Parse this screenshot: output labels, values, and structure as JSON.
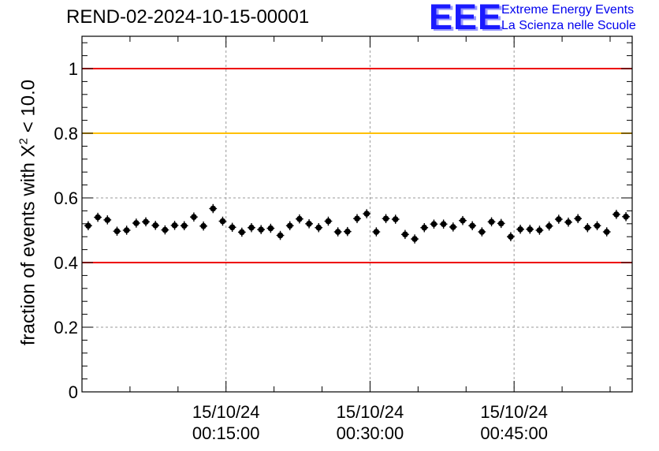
{
  "title": "REND-02-2024-10-15-00001",
  "logo": {
    "mark": "EEE",
    "line1": "Extreme Energy Events",
    "line2": "La Scienza nelle Scuole"
  },
  "chart_data": {
    "type": "scatter",
    "title": "REND-02-2024-10-15-00001",
    "ylabel": {
      "prefix": "fraction of events with ",
      "symbol": "X",
      "sup": "2",
      "suffix": " < 10.0"
    },
    "xlabel": "",
    "ylim": [
      0,
      1.1
    ],
    "xlim": [
      0,
      57.3
    ],
    "x_unit": "minutes after 15/10/24 00:00:00",
    "yticks": [
      {
        "value": 0,
        "label": "0"
      },
      {
        "value": 0.2,
        "label": "0.2"
      },
      {
        "value": 0.4,
        "label": "0.4"
      },
      {
        "value": 0.6,
        "label": "0.6"
      },
      {
        "value": 0.8,
        "label": "0.8"
      },
      {
        "value": 1,
        "label": "1"
      }
    ],
    "xticks": [
      {
        "value": 15,
        "date": "15/10/24",
        "time": "00:15:00"
      },
      {
        "value": 30,
        "date": "15/10/24",
        "time": "00:30:00"
      },
      {
        "value": 45,
        "date": "15/10/24",
        "time": "00:45:00"
      }
    ],
    "grid": true,
    "reference_lines": [
      {
        "y": 1.0,
        "color": "#ee0000"
      },
      {
        "y": 0.8,
        "color": "#ffc000"
      },
      {
        "y": 0.4,
        "color": "#ee0000"
      }
    ],
    "series": [
      {
        "marker_color": "#000000",
        "x_error": 0.4,
        "y_error": 0.014,
        "points": [
          [
            0.65,
            0.514
          ],
          [
            1.65,
            0.54
          ],
          [
            2.65,
            0.532
          ],
          [
            3.65,
            0.497
          ],
          [
            4.65,
            0.5
          ],
          [
            5.65,
            0.522
          ],
          [
            6.65,
            0.526
          ],
          [
            7.65,
            0.515
          ],
          [
            8.65,
            0.501
          ],
          [
            9.65,
            0.515
          ],
          [
            10.65,
            0.514
          ],
          [
            11.65,
            0.541
          ],
          [
            12.65,
            0.513
          ],
          [
            13.65,
            0.567
          ],
          [
            14.65,
            0.528
          ],
          [
            15.65,
            0.509
          ],
          [
            16.65,
            0.494
          ],
          [
            17.65,
            0.508
          ],
          [
            18.65,
            0.502
          ],
          [
            19.65,
            0.506
          ],
          [
            20.65,
            0.484
          ],
          [
            21.65,
            0.514
          ],
          [
            22.65,
            0.535
          ],
          [
            23.65,
            0.52
          ],
          [
            24.65,
            0.508
          ],
          [
            25.65,
            0.528
          ],
          [
            26.65,
            0.495
          ],
          [
            27.65,
            0.496
          ],
          [
            28.65,
            0.536
          ],
          [
            29.65,
            0.551
          ],
          [
            30.65,
            0.495
          ],
          [
            31.65,
            0.536
          ],
          [
            32.65,
            0.534
          ],
          [
            33.65,
            0.487
          ],
          [
            34.65,
            0.473
          ],
          [
            35.65,
            0.508
          ],
          [
            36.65,
            0.519
          ],
          [
            37.65,
            0.519
          ],
          [
            38.65,
            0.51
          ],
          [
            39.65,
            0.53
          ],
          [
            40.65,
            0.514
          ],
          [
            41.65,
            0.495
          ],
          [
            42.65,
            0.526
          ],
          [
            43.65,
            0.521
          ],
          [
            44.65,
            0.48
          ],
          [
            45.65,
            0.503
          ],
          [
            46.65,
            0.503
          ],
          [
            47.65,
            0.5
          ],
          [
            48.65,
            0.513
          ],
          [
            49.65,
            0.534
          ],
          [
            50.65,
            0.525
          ],
          [
            51.65,
            0.536
          ],
          [
            52.65,
            0.508
          ],
          [
            53.65,
            0.514
          ],
          [
            54.65,
            0.495
          ],
          [
            55.65,
            0.549
          ],
          [
            56.65,
            0.542
          ]
        ]
      }
    ]
  }
}
